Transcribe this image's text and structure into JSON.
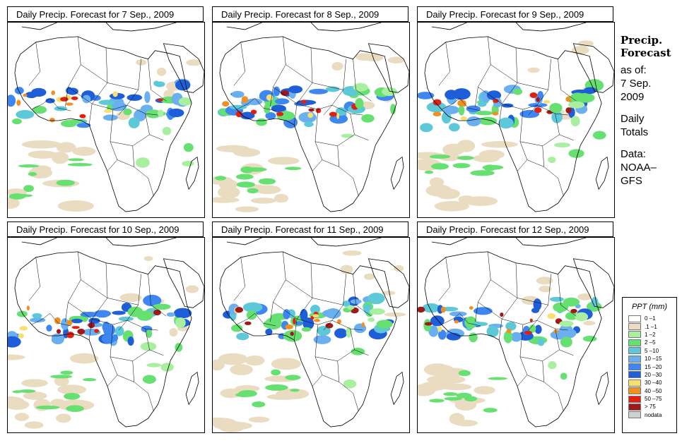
{
  "panels": [
    {
      "title": "Daily Precip. Forecast for  7 Sep., 2009"
    },
    {
      "title": "Daily Precip. Forecast for  8 Sep., 2009"
    },
    {
      "title": "Daily Precip. Forecast for  9 Sep., 2009"
    },
    {
      "title": "Daily Precip. Forecast for  10 Sep., 2009"
    },
    {
      "title": "Daily Precip. Forecast for  11 Sep., 2009"
    },
    {
      "title": "Daily Precip. Forecast for  12 Sep., 2009"
    }
  ],
  "sidebar": {
    "heading_1": "Precip.",
    "heading_2": "Forecast",
    "asof_1": "as of:",
    "asof_2": "7 Sep.",
    "asof_3": "2009",
    "daily_1": "Daily",
    "daily_2": "Totals",
    "data_1": "Data:",
    "data_2": "NOAA–",
    "data_3": "GFS"
  },
  "legend": {
    "title": "PPT (mm)",
    "items": [
      {
        "label": "0 –1",
        "color": "#ffffff"
      },
      {
        "label": ".1 –1",
        "color": "#eadcc0"
      },
      {
        "label": "1 –2",
        "color": "#a8f0a0"
      },
      {
        "label": "2 –5",
        "color": "#66e070"
      },
      {
        "label": "5 –10",
        "color": "#5cc8d8"
      },
      {
        "label": "10 –15",
        "color": "#6ab0f0"
      },
      {
        "label": "15 –20",
        "color": "#3e86f0"
      },
      {
        "label": "20 –30",
        "color": "#1e5ed8"
      },
      {
        "label": "30 –40",
        "color": "#f8e070"
      },
      {
        "label": "40 –50",
        "color": "#f09020"
      },
      {
        "label": "50 –75",
        "color": "#e02010"
      },
      {
        "label": "> 75",
        "color": "#a01818"
      },
      {
        "label": "nodata",
        "color": "#d0d0d0"
      }
    ]
  }
}
